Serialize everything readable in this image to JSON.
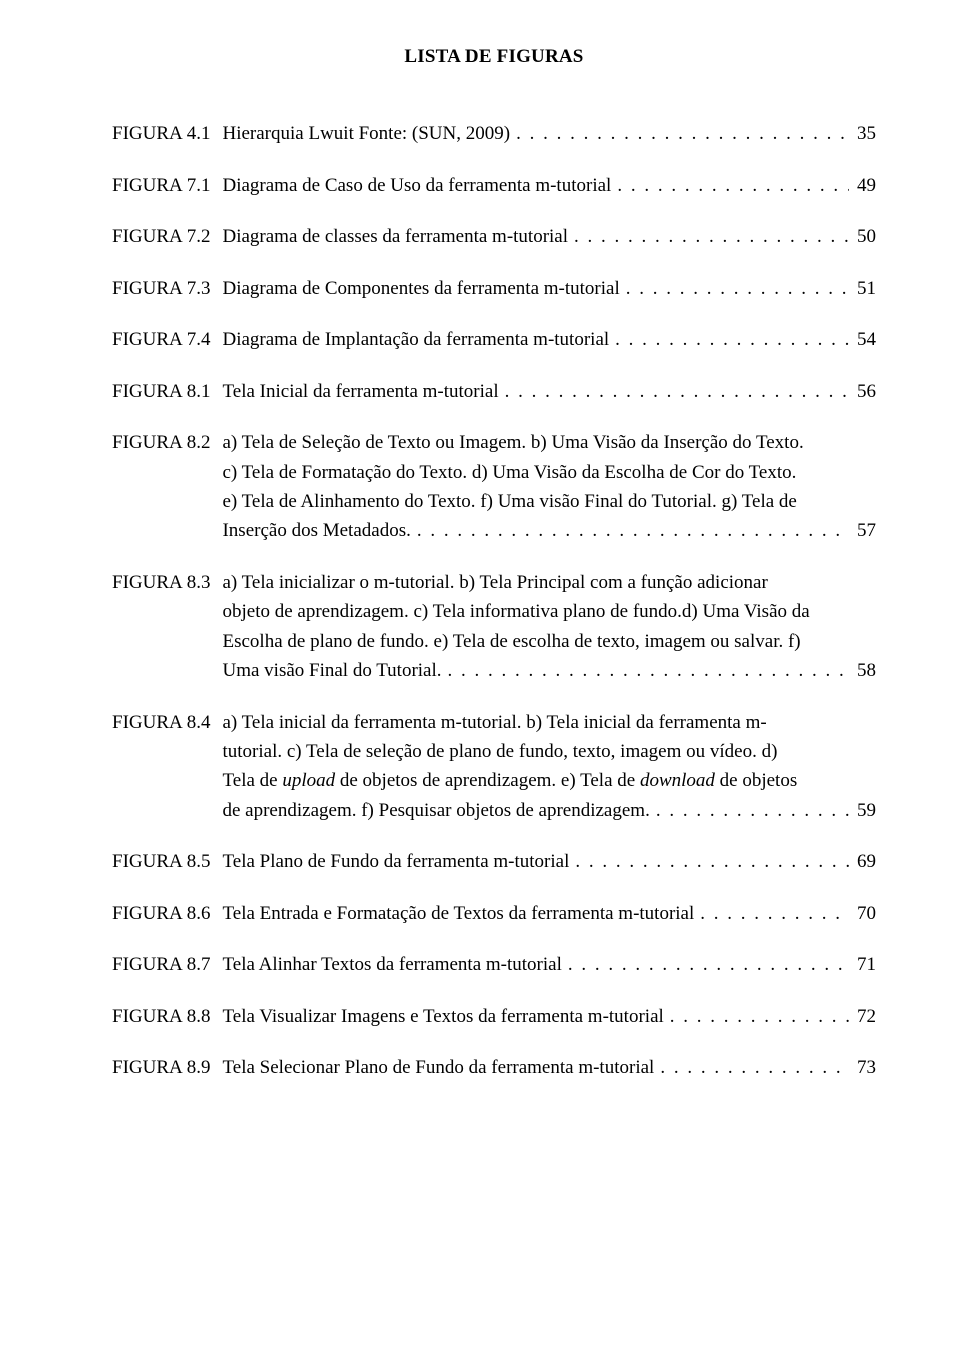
{
  "title": "LISTA DE FIGURAS",
  "entries": [
    {
      "label": "FIGURA",
      "num": "4.1",
      "title": "Hierarquia Lwuit Fonte: (SUN, 2009)",
      "page": "35",
      "multi": false
    },
    {
      "label": "FIGURA",
      "num": "7.1",
      "title": "Diagrama de Caso de Uso da ferramenta m-tutorial",
      "page": "49",
      "multi": false
    },
    {
      "label": "FIGURA",
      "num": "7.2",
      "title": "Diagrama de classes da ferramenta m-tutorial",
      "page": "50",
      "multi": false
    },
    {
      "label": "FIGURA",
      "num": "7.3",
      "title": "Diagrama de Componentes da ferramenta m-tutorial",
      "page": "51",
      "multi": false
    },
    {
      "label": "FIGURA",
      "num": "7.4",
      "title": "Diagrama de Implantação da ferramenta m-tutorial",
      "page": "54",
      "multi": false
    },
    {
      "label": "FIGURA",
      "num": "8.1",
      "title": "Tela Inicial da ferramenta m-tutorial",
      "page": "56",
      "multi": false
    },
    {
      "label": "FIGURA",
      "num": "8.2",
      "multi": true,
      "page": "57",
      "body_lines": [
        "a) Tela de Seleção de Texto ou Imagem. b) Uma Visão da Inserção do Texto.",
        "c) Tela de Formatação do Texto. d) Uma Visão da Escolha de Cor do Texto.",
        "e) Tela de Alinhamento do Texto. f) Uma visão Final do Tutorial. g) Tela de"
      ],
      "last_text": "Inserção dos Metadados."
    },
    {
      "label": "FIGURA",
      "num": "8.3",
      "multi": true,
      "page": "58",
      "body_lines": [
        "a) Tela inicializar o m-tutorial. b) Tela Principal com a função adicionar",
        "objeto de aprendizagem. c) Tela informativa plano de fundo.d) Uma Visão da",
        "Escolha de plano de fundo. e) Tela de escolha de texto, imagem ou salvar. f)"
      ],
      "last_text": "Uma visão Final do Tutorial."
    },
    {
      "label": "FIGURA",
      "num": "8.4",
      "multi": true,
      "page": "59",
      "body_lines": [
        "a) Tela inicial da ferramenta m-tutorial. b) Tela inicial da ferramenta m-",
        "tutorial. c) Tela de seleção de plano de fundo, texto, imagem ou vídeo. d)"
      ],
      "rich_line": {
        "parts": [
          {
            "t": "Tela de ",
            "i": false
          },
          {
            "t": "upload",
            "i": true
          },
          {
            "t": " de objetos de aprendizagem. e) Tela de ",
            "i": false
          },
          {
            "t": "download",
            "i": true
          },
          {
            "t": " de objetos",
            "i": false
          }
        ]
      },
      "last_text": "de aprendizagem. f) Pesquisar objetos de aprendizagem."
    },
    {
      "label": "FIGURA",
      "num": "8.5",
      "title": "Tela Plano de Fundo da ferramenta m-tutorial",
      "page": "69",
      "multi": false
    },
    {
      "label": "FIGURA",
      "num": "8.6",
      "title": "Tela Entrada e Formatação de Textos da ferramenta m-tutorial",
      "page": "70",
      "multi": false
    },
    {
      "label": "FIGURA",
      "num": "8.7",
      "title": "Tela Alinhar Textos da ferramenta m-tutorial",
      "page": "71",
      "multi": false
    },
    {
      "label": "FIGURA",
      "num": "8.8",
      "title": "Tela Visualizar Imagens e Textos da ferramenta m-tutorial",
      "page": "72",
      "multi": false
    },
    {
      "label": "FIGURA",
      "num": "8.9",
      "title": "Tela Selecionar Plano de Fundo da ferramenta m-tutorial",
      "page": "73",
      "multi": false
    }
  ],
  "leaders": ". . . . . . . . . . . . . . . . . . . . . . . . . . . . . . . . . . . . . . . . . . . . . . . . . . . . . . . . . . . . . . . . . . . . . . . . . . . . . . . ."
}
